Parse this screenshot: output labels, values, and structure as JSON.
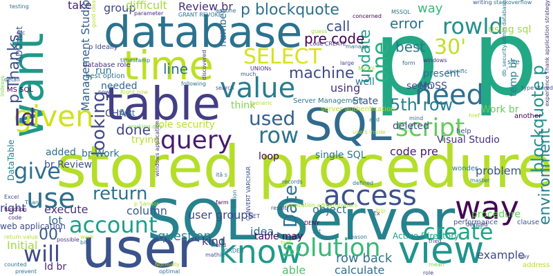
{
  "colors": {
    "background": "#ffffff"
  },
  "words": [
    {
      "text": "p p",
      "color": "#22a884"
    },
    {
      "text": "stored procedure",
      "color": "#b5de2b"
    },
    {
      "text": "SQL Server",
      "color": "#26828e"
    },
    {
      "text": "user",
      "color": "#3b528b"
    },
    {
      "text": "database",
      "color": "#2c728e"
    },
    {
      "text": "table",
      "color": "#433e85"
    },
    {
      "text": "SQL",
      "color": "#2f6c8e"
    },
    {
      "text": "want",
      "color": "#1f988b"
    },
    {
      "text": "time",
      "color": "#bddf26"
    },
    {
      "text": "view",
      "color": "#1f948c"
    },
    {
      "text": "know",
      "color": "#1f9a8a"
    },
    {
      "text": "way",
      "color": "#440154"
    },
    {
      "text": "given",
      "color": "#d0e11c"
    },
    {
      "text": "value",
      "color": "#287c8e"
    },
    {
      "text": "need",
      "color": "#2d708e"
    },
    {
      "text": "query",
      "color": "#481b6d"
    },
    {
      "text": "script",
      "color": "#65cb5e"
    },
    {
      "text": "solution",
      "color": "#38b977"
    },
    {
      "text": "use",
      "color": "#2e6e8e"
    },
    {
      "text": "access",
      "color": "#3b528b"
    },
    {
      "text": "account",
      "color": "#1f9e89"
    },
    {
      "text": "create",
      "color": "#21a585"
    },
    {
      "text": "will",
      "color": "#3e4989"
    },
    {
      "text": "give",
      "color": "#2e6f8e"
    },
    {
      "text": "SELECT",
      "color": "#d8e219"
    },
    {
      "text": "30'",
      "color": "#c2df23"
    },
    {
      "text": "rowId",
      "color": "#218f8d"
    },
    {
      "text": "row",
      "color": "#2c738e"
    },
    {
      "text": "one",
      "color": "#29af7f"
    },
    {
      "text": "blockquote p",
      "color": "#20928c"
    },
    {
      "text": "Id",
      "color": "#46327e"
    },
    {
      "text": "used",
      "color": "#34618d"
    },
    {
      "text": "looking",
      "color": "#3f4788"
    },
    {
      "text": "Date",
      "color": "#2e6e8e"
    },
    {
      "text": "return",
      "color": "#2c728e"
    },
    {
      "text": "p blockquote",
      "color": "#2d708e"
    },
    {
      "text": "environment",
      "color": "#26818e"
    },
    {
      "text": "update",
      "color": "#1fa088"
    },
    {
      "text": "5th row",
      "color": "#277f8e"
    },
    {
      "text": "00'",
      "color": "#365d8d"
    },
    {
      "text": "p Thanks",
      "color": "#3d4e8a"
    },
    {
      "text": "machine",
      "color": "#3e4a89"
    },
    {
      "text": "pre code",
      "color": "#440154"
    },
    {
      "text": "call",
      "color": "#3b528b"
    },
    {
      "text": "error",
      "color": "#2d718e"
    },
    {
      "text": "best",
      "color": "#2a768e"
    },
    {
      "text": "way",
      "color": "#35b779"
    },
    {
      "text": "using sql",
      "color": "#a0da39"
    },
    {
      "text": "line",
      "color": "#2c728e"
    },
    {
      "text": "done",
      "color": "#414487"
    },
    {
      "text": "role security",
      "color": "#b8de29"
    },
    {
      "text": "Review br",
      "color": "#472d7b"
    },
    {
      "text": "group",
      "color": "#404588"
    },
    {
      "text": "difficult",
      "color": "#a2da37"
    },
    {
      "text": "take",
      "color": "#481f70"
    },
    {
      "text": "Management Studio",
      "color": "#355f8d"
    },
    {
      "text": "question",
      "color": "#25838e"
    },
    {
      "text": "kind",
      "color": "#46327e"
    },
    {
      "text": "idea",
      "color": "#2e6e8e"
    },
    {
      "text": "example",
      "color": "#3e4989"
    },
    {
      "text": "calculate",
      "color": "#2d708e"
    },
    {
      "text": "row back",
      "color": "#2c728e"
    },
    {
      "text": "able",
      "color": "#4ec36b"
    },
    {
      "text": "user groups",
      "color": "#3f4788"
    },
    {
      "text": "execute",
      "color": "#46327e"
    },
    {
      "text": "lot",
      "color": "#31688e"
    },
    {
      "text": "column",
      "color": "#38598c"
    },
    {
      "text": "object",
      "color": "#2e6f8e"
    },
    {
      "text": "procedure",
      "color": "#65cb5e"
    },
    {
      "text": "problem",
      "color": "#3b528b"
    },
    {
      "text": "present",
      "color": "#2d708e"
    },
    {
      "text": "think",
      "color": "#7fd34e"
    },
    {
      "text": "State",
      "color": "#3a538b"
    },
    {
      "text": "using",
      "color": "#46327e"
    },
    {
      "text": "code pre",
      "color": "#481b6d"
    },
    {
      "text": "deleted",
      "color": "#3f4788"
    },
    {
      "text": "single SQL",
      "color": "#2c728e"
    },
    {
      "text": "loop",
      "color": "#440154"
    },
    {
      "text": "run",
      "color": "#2c728e"
    },
    {
      "text": "MOSS",
      "color": "#3b528b"
    },
    {
      "text": "temp br",
      "color": "#287d8e"
    },
    {
      "text": "Work br",
      "color": "#65cb5e"
    },
    {
      "text": "CHAR",
      "color": "#3e4a89"
    },
    {
      "text": "needed",
      "color": "#32658e"
    },
    {
      "text": "trying",
      "color": "#b5de2b"
    },
    {
      "text": "added",
      "color": "#2d708e"
    },
    {
      "text": "br Work",
      "color": "#2c728e"
    },
    {
      "text": "br Review",
      "color": "#3b528b"
    },
    {
      "text": "Visual Studio",
      "color": "#46327e"
    },
    {
      "text": "Active Directory",
      "color": "#1fa088"
    },
    {
      "text": "table may",
      "color": "#440154"
    },
    {
      "text": "Id br",
      "color": "#482576"
    },
    {
      "text": "Initial",
      "color": "#9fda3a"
    },
    {
      "text": "right",
      "color": "#3f4788"
    },
    {
      "text": "number",
      "color": "#2e6e8e"
    },
    {
      "text": "well",
      "color": "#2a778e"
    },
    {
      "text": "seem",
      "color": "#3b528b"
    },
    {
      "text": "first",
      "color": "#2c728e"
    },
    {
      "text": "ADO Net",
      "color": "#3b528b"
    },
    {
      "text": "DataTable",
      "color": "#26828e"
    },
    {
      "text": "web application",
      "color": "#3e4989"
    },
    {
      "text": "MS SQL",
      "color": "#440154"
    },
    {
      "text": "database role",
      "color": "#472d7b"
    },
    {
      "text": "best option",
      "color": "#2c728e"
    },
    {
      "text": "Server Management",
      "color": "#2a788e"
    },
    {
      "text": "server authentication",
      "color": "#b8de29"
    },
    {
      "text": "working day",
      "color": "#7ad151"
    },
    {
      "text": "windows application",
      "color": "#46327e"
    },
    {
      "text": "application administrators",
      "color": "#a0da39"
    },
    {
      "text": "CONVERT VARCHAR",
      "color": "#3b528b"
    },
    {
      "text": "p Sandor",
      "color": "#a8db34"
    },
    {
      "text": "stackoverflow",
      "color": "#2c728e"
    },
    {
      "text": "p Ideally",
      "color": "#3f4788"
    },
    {
      "text": "GRANT REVOKE",
      "color": "#2e6e8e"
    },
    {
      "text": "Normally",
      "color": "#b5de2b"
    },
    {
      "text": "optimal",
      "color": "#2c728e"
    },
    {
      "text": "possible",
      "color": "#46327e"
    },
    {
      "text": "mathin",
      "color": "#3b528b"
    },
    {
      "text": "wonder",
      "color": "#2a778e"
    },
    {
      "text": "another",
      "color": "#440154"
    },
    {
      "text": "help",
      "color": "#3e4989"
    },
    {
      "text": "site",
      "color": "#2c728e"
    },
    {
      "text": "form",
      "color": "#31688e"
    },
    {
      "text": "windows",
      "color": "#472d7b"
    },
    {
      "text": "specific",
      "color": "#2d708e"
    },
    {
      "text": "clause",
      "color": "#3b528b"
    },
    {
      "text": "address",
      "color": "#b8de29"
    },
    {
      "text": "mean",
      "color": "#7fd34e"
    },
    {
      "text": "say",
      "color": "#3f4788"
    },
    {
      "text": "tried",
      "color": "#3b528b"
    },
    {
      "text": "reason",
      "color": "#2c728e"
    },
    {
      "text": "decided",
      "color": "#46327e"
    },
    {
      "text": "cell",
      "color": "#1f988b"
    },
    {
      "text": "DENY",
      "color": "#440154"
    },
    {
      "text": "result",
      "color": "#3e4989"
    },
    {
      "text": "defined",
      "color": "#2a778e"
    },
    {
      "text": "records",
      "color": "#31688e"
    },
    {
      "text": "users inside",
      "color": "#b5de2b"
    },
    {
      "text": "master",
      "color": "#2c728e"
    },
    {
      "text": "performance",
      "color": "#3b528b"
    },
    {
      "text": "trip",
      "color": "#b8de29"
    },
    {
      "text": "set",
      "color": "#2c728e"
    },
    {
      "text": "Ex",
      "color": "#472d7b"
    },
    {
      "text": "UNIONs",
      "color": "#46327e"
    },
    {
      "text": "MySql",
      "color": "#a0da39"
    },
    {
      "text": "much",
      "color": "#3b528b"
    },
    {
      "text": "manage",
      "color": "#2a778e"
    },
    {
      "text": "large",
      "color": "#3e4989"
    },
    {
      "text": "concerned",
      "color": "#440154"
    },
    {
      "text": "anyone",
      "color": "#2c728e"
    },
    {
      "text": "parameter",
      "color": "#472d7b"
    },
    {
      "text": "writing",
      "color": "#3b528b"
    },
    {
      "text": "MSSQL",
      "color": "#2a778e"
    },
    {
      "text": "timestamp",
      "color": "#2c728e"
    },
    {
      "text": "code CREATE",
      "color": "#46327e"
    },
    {
      "text": "good idea",
      "color": "#b5de2b"
    },
    {
      "text": "guess",
      "color": "#a0da39"
    },
    {
      "text": "etc",
      "color": "#3e4989"
    },
    {
      "text": "testing",
      "color": "#2c728e"
    },
    {
      "text": "detail",
      "color": "#31688e"
    },
    {
      "text": "indexes",
      "color": "#7fd34e"
    },
    {
      "text": "Excel",
      "color": "#3b528b"
    },
    {
      "text": "Thank",
      "color": "#2c728e"
    },
    {
      "text": "function",
      "color": "#440154"
    },
    {
      "text": "code",
      "color": "#472d7b"
    },
    {
      "text": "return value",
      "color": "#b8de29"
    },
    {
      "text": "counted",
      "color": "#2a778e"
    },
    {
      "text": "prevent",
      "color": "#2c728e"
    },
    {
      "text": "generic",
      "color": "#b5de2b"
    },
    {
      "text": "search",
      "color": "#3b528b"
    },
    {
      "text": "discovered",
      "color": "#46327e"
    },
    {
      "text": "following",
      "color": "#2c728e"
    },
    {
      "text": "now",
      "color": "#3e4989"
    },
    {
      "text": "Right now",
      "color": "#b8de29"
    },
    {
      "text": "farm",
      "color": "#440154"
    },
    {
      "text": "million",
      "color": "#2a778e"
    },
    {
      "text": "itâ s",
      "color": "#2c728e"
    },
    {
      "text": "NET",
      "color": "#3b528b"
    },
    {
      "text": "tsql",
      "color": "#a0da39"
    },
    {
      "text": "end",
      "color": "#46327e"
    },
    {
      "text": "ORDER",
      "color": "#2c728e"
    },
    {
      "text": "mind",
      "color": "#31688e"
    },
    {
      "text": "href",
      "color": "#b5de2b"
    },
    {
      "text": "type stored",
      "color": "#3b528b"
    },
    {
      "text": "db_securityadmin database",
      "color": "#2c728e"
    },
    {
      "text": "experience Thank application strategy",
      "color": "#46327e"
    },
    {
      "text": "role",
      "color": "#3e4989"
    },
    {
      "text": "bit",
      "color": "#2a778e"
    },
    {
      "text": "work",
      "color": "#b8de29"
    },
    {
      "text": "add",
      "color": "#2c728e"
    }
  ]
}
